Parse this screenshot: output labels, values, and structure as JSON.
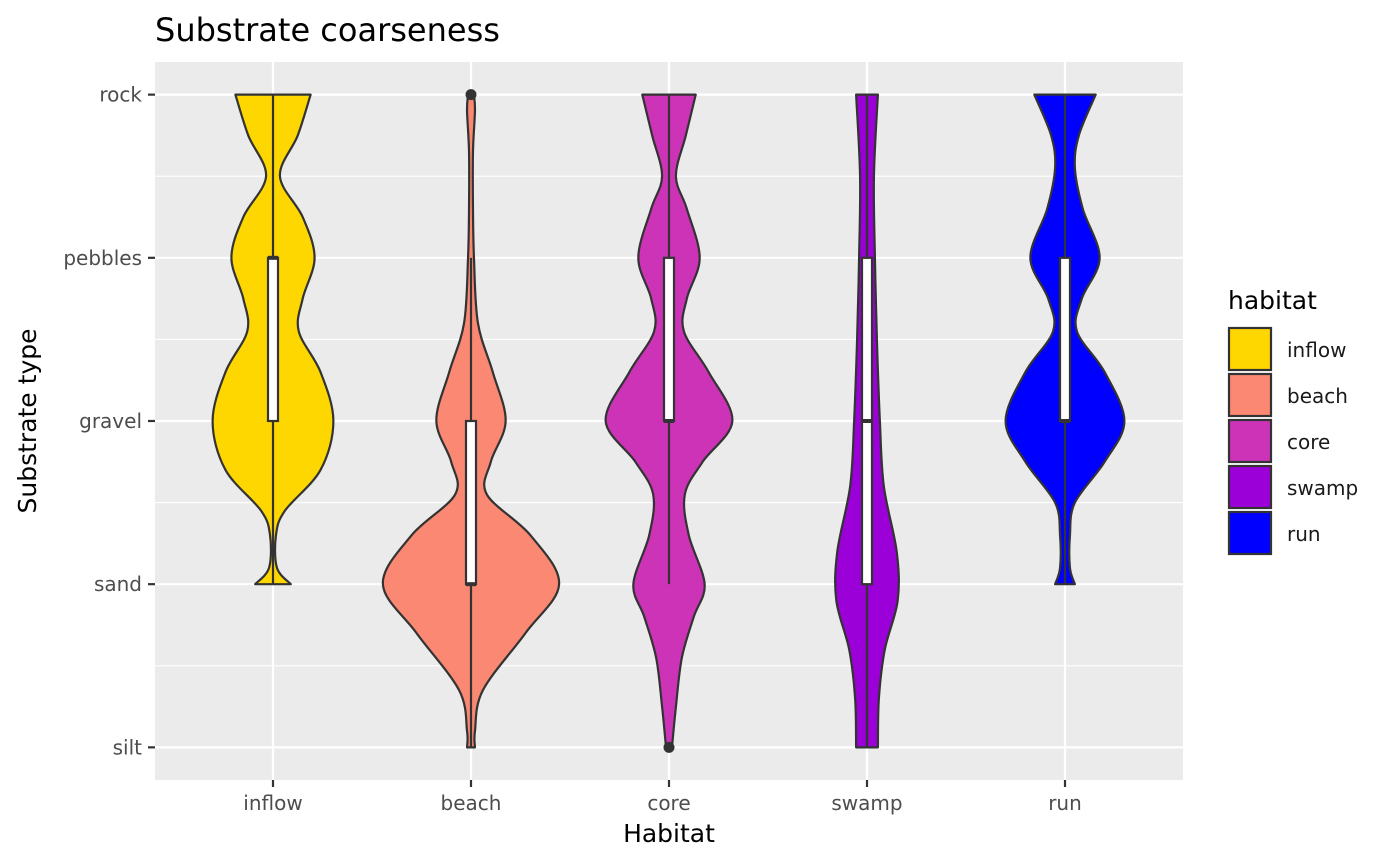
{
  "chart_data": {
    "type": "violin",
    "title": "Substrate coarseness",
    "xlabel": "Habitat",
    "ylabel": "Substrate type",
    "categories": [
      "inflow",
      "beach",
      "core",
      "swamp",
      "run"
    ],
    "y_levels": [
      "silt",
      "sand",
      "gravel",
      "pebbles",
      "rock"
    ],
    "ylim": [
      0.8,
      5.2
    ],
    "grid": true,
    "legend": {
      "title": "habitat",
      "position": "right",
      "entries": [
        {
          "label": "inflow",
          "color": "#FFD700"
        },
        {
          "label": "beach",
          "color": "#FA8872"
        },
        {
          "label": "core",
          "color": "#CC33B7"
        },
        {
          "label": "swamp",
          "color": "#9A00D7"
        },
        {
          "label": "run",
          "color": "#0000FF"
        }
      ]
    },
    "series": [
      {
        "color": "#FFD700",
        "range": [
          2,
          5
        ],
        "box": {
          "q1": 3,
          "median": 4,
          "q3": 4,
          "whisker_low": 2,
          "whisker_high": 5
        },
        "outliers": [],
        "density": [
          [
            2,
            0.18
          ],
          [
            2.1,
            0.04
          ],
          [
            2.3,
            0.03
          ],
          [
            2.45,
            0.12
          ],
          [
            2.7,
            0.48
          ],
          [
            3,
            0.61
          ],
          [
            3.3,
            0.48
          ],
          [
            3.55,
            0.26
          ],
          [
            3.75,
            0.3
          ],
          [
            4,
            0.42
          ],
          [
            4.25,
            0.3
          ],
          [
            4.5,
            0.07
          ],
          [
            4.75,
            0.25
          ],
          [
            5,
            0.38
          ]
        ]
      },
      {
        "color": "#FA8872",
        "range": [
          1,
          5
        ],
        "box": {
          "q1": 2,
          "median": 2,
          "q3": 3,
          "whisker_low": 1,
          "whisker_high": 4
        },
        "outliers": [
          5
        ],
        "density": [
          [
            1,
            0.04
          ],
          [
            1.1,
            0.04
          ],
          [
            1.35,
            0.12
          ],
          [
            1.7,
            0.55
          ],
          [
            2,
            0.89
          ],
          [
            2.3,
            0.6
          ],
          [
            2.55,
            0.16
          ],
          [
            2.75,
            0.2
          ],
          [
            3,
            0.35
          ],
          [
            3.3,
            0.22
          ],
          [
            3.6,
            0.07
          ],
          [
            4,
            0.03
          ],
          [
            4.3,
            0.02
          ],
          [
            4.65,
            0.02
          ],
          [
            4.9,
            0.04
          ],
          [
            5,
            0.03
          ]
        ]
      },
      {
        "color": "#CC33B7",
        "range": [
          1,
          5
        ],
        "box": {
          "q1": 3,
          "median": 3,
          "q3": 4,
          "whisker_low": 2,
          "whisker_high": 5
        },
        "outliers": [
          1
        ],
        "density": [
          [
            1,
            0.03
          ],
          [
            1.25,
            0.07
          ],
          [
            1.55,
            0.13
          ],
          [
            1.8,
            0.25
          ],
          [
            2,
            0.36
          ],
          [
            2.3,
            0.2
          ],
          [
            2.55,
            0.16
          ],
          [
            2.75,
            0.34
          ],
          [
            3,
            0.64
          ],
          [
            3.3,
            0.4
          ],
          [
            3.55,
            0.15
          ],
          [
            3.75,
            0.18
          ],
          [
            4,
            0.31
          ],
          [
            4.3,
            0.18
          ],
          [
            4.5,
            0.07
          ],
          [
            4.75,
            0.17
          ],
          [
            5,
            0.27
          ]
        ]
      },
      {
        "color": "#9A00D7",
        "range": [
          1,
          5
        ],
        "box": {
          "q1": 2,
          "median": 3,
          "q3": 4,
          "whisker_low": 1,
          "whisker_high": 5
        },
        "outliers": [],
        "density": [
          [
            1,
            0.11
          ],
          [
            1.3,
            0.12
          ],
          [
            1.6,
            0.18
          ],
          [
            1.9,
            0.31
          ],
          [
            2.2,
            0.3
          ],
          [
            2.6,
            0.17
          ],
          [
            3,
            0.13
          ],
          [
            3.5,
            0.1
          ],
          [
            4,
            0.08
          ],
          [
            4.5,
            0.07
          ],
          [
            5,
            0.11
          ]
        ]
      },
      {
        "color": "#0000FF",
        "range": [
          2,
          5
        ],
        "box": {
          "q1": 3,
          "median": 3,
          "q3": 4,
          "whisker_low": 2,
          "whisker_high": 5
        },
        "outliers": [],
        "density": [
          [
            2,
            0.1
          ],
          [
            2.1,
            0.05
          ],
          [
            2.3,
            0.05
          ],
          [
            2.5,
            0.1
          ],
          [
            2.75,
            0.4
          ],
          [
            3,
            0.6
          ],
          [
            3.3,
            0.4
          ],
          [
            3.55,
            0.12
          ],
          [
            3.75,
            0.17
          ],
          [
            4,
            0.35
          ],
          [
            4.3,
            0.18
          ],
          [
            4.55,
            0.1
          ],
          [
            4.75,
            0.14
          ],
          [
            5,
            0.31
          ]
        ]
      }
    ]
  }
}
